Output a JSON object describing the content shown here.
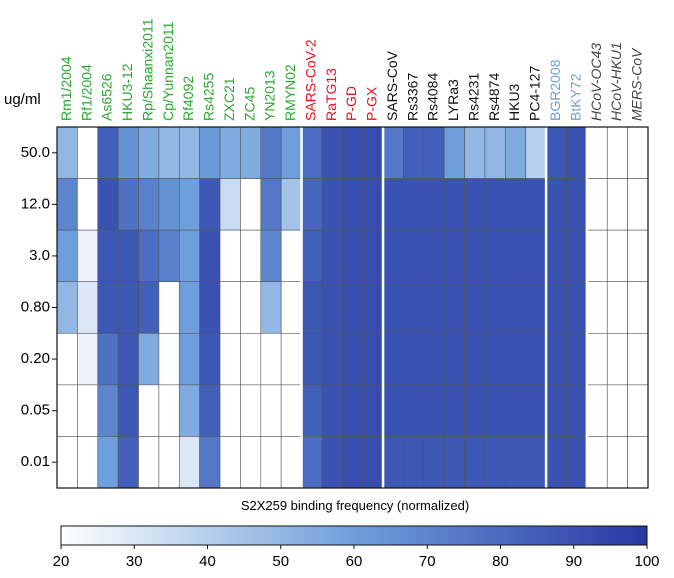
{
  "chart_data": {
    "type": "heatmap",
    "row_axis_label": "ug/ml",
    "rows": [
      "50.0",
      "12.0",
      "3.0",
      "0.80",
      "0.20",
      "0.05",
      "0.01"
    ],
    "column_groups": [
      {
        "color": "#2aa830",
        "italic": false,
        "categories": [
          "Rm1/2004",
          "Rf1/2004",
          "As6526",
          "HKU3-12",
          "Rp/Shaanxi2011",
          "Cp/Yunnan2011",
          "Rf4092",
          "Rs4255",
          "ZXC21",
          "ZC45",
          "YN2013",
          "RMYN02"
        ]
      },
      {
        "color": "#e8101c",
        "italic": false,
        "categories": [
          "SARS-CoV-2",
          "RaTG13",
          "P-GD",
          "P-GX"
        ]
      },
      {
        "color": "#111111",
        "italic": false,
        "categories": [
          "SARS-CoV",
          "Rs3367",
          "Rs4084",
          "LYRa3",
          "Rs4231",
          "Rs4874",
          "HKU3",
          "PC4-127"
        ]
      },
      {
        "color": "#6f9fd6",
        "italic": false,
        "categories": [
          "BGR2008",
          "BtKY72"
        ]
      },
      {
        "color": "#444444",
        "italic": true,
        "categories": [
          "HCoV-OC43",
          "HCoV-HKU1",
          "MERS-CoV"
        ]
      }
    ],
    "values": [
      [
        50,
        20,
        85,
        65,
        55,
        50,
        50,
        62,
        55,
        55,
        75,
        60,
        80,
        90,
        92,
        92,
        75,
        85,
        85,
        60,
        50,
        50,
        55,
        40,
        88,
        90,
        20,
        20,
        20
      ],
      [
        70,
        20,
        90,
        78,
        72,
        65,
        60,
        88,
        35,
        20,
        75,
        45,
        82,
        90,
        92,
        92,
        90,
        90,
        90,
        90,
        90,
        90,
        90,
        90,
        90,
        90,
        20,
        20,
        20
      ],
      [
        60,
        25,
        88,
        88,
        80,
        72,
        60,
        90,
        20,
        20,
        70,
        20,
        85,
        90,
        92,
        92,
        90,
        90,
        90,
        90,
        90,
        90,
        90,
        90,
        90,
        90,
        20,
        20,
        20
      ],
      [
        50,
        30,
        88,
        88,
        85,
        20,
        60,
        90,
        20,
        20,
        50,
        20,
        88,
        90,
        92,
        92,
        90,
        90,
        90,
        90,
        90,
        90,
        90,
        90,
        90,
        90,
        20,
        20,
        20
      ],
      [
        20,
        25,
        78,
        88,
        55,
        20,
        60,
        88,
        20,
        20,
        20,
        20,
        88,
        90,
        92,
        92,
        90,
        90,
        90,
        90,
        90,
        90,
        90,
        90,
        90,
        90,
        20,
        20,
        20
      ],
      [
        20,
        20,
        70,
        88,
        20,
        20,
        55,
        85,
        20,
        20,
        20,
        20,
        85,
        90,
        92,
        92,
        90,
        90,
        90,
        90,
        90,
        90,
        90,
        90,
        90,
        90,
        20,
        20,
        20
      ],
      [
        20,
        20,
        60,
        85,
        20,
        20,
        30,
        75,
        20,
        20,
        20,
        20,
        80,
        90,
        92,
        92,
        88,
        88,
        88,
        88,
        88,
        88,
        88,
        88,
        90,
        90,
        20,
        20,
        20
      ]
    ],
    "colorscale": [
      "#ffffff",
      "#6e9fdc",
      "#2838a4"
    ],
    "zlim": [
      20,
      100
    ],
    "zticks": [
      20,
      30,
      40,
      50,
      60,
      70,
      80,
      90,
      100
    ],
    "colorbar_label": "S2X259 binding frequency (normalized)"
  }
}
